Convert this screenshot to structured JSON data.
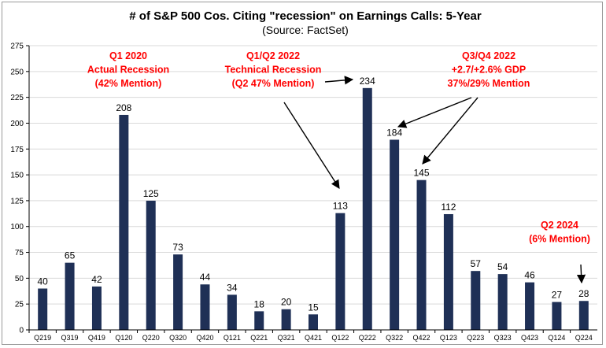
{
  "chart_data": {
    "type": "bar",
    "title": "# of S&P 500 Cos. Citing \"recession\" on Earnings Calls: 5-Year",
    "subtitle": "(Source: FactSet)",
    "xlabel": "",
    "ylabel": "",
    "ylim": [
      0,
      275
    ],
    "yticks": [
      0,
      25,
      50,
      75,
      100,
      125,
      150,
      175,
      200,
      225,
      250,
      275
    ],
    "grid": true,
    "bar_color": "#1f3056",
    "categories": [
      "Q219",
      "Q319",
      "Q419",
      "Q120",
      "Q220",
      "Q320",
      "Q420",
      "Q121",
      "Q221",
      "Q321",
      "Q421",
      "Q122",
      "Q222",
      "Q322",
      "Q422",
      "Q123",
      "Q223",
      "Q323",
      "Q423",
      "Q124",
      "Q224"
    ],
    "values": [
      40,
      65,
      42,
      208,
      125,
      73,
      44,
      34,
      18,
      20,
      15,
      113,
      234,
      184,
      145,
      112,
      57,
      54,
      46,
      27,
      28
    ],
    "annotation_color": "#ff0000",
    "annotations": [
      {
        "lines": [
          "Q1 2020",
          "Actual Recession",
          "(42% Mention)"
        ]
      },
      {
        "lines": [
          "Q1/Q2 2022",
          "Technical Recession",
          "(Q2 47% Mention)"
        ]
      },
      {
        "lines": [
          "Q3/Q4 2022",
          "+2.7/+2.6% GDP",
          "37%/29% Mention"
        ]
      },
      {
        "lines": [
          "Q2 2024",
          "(6% Mention)"
        ]
      }
    ]
  }
}
